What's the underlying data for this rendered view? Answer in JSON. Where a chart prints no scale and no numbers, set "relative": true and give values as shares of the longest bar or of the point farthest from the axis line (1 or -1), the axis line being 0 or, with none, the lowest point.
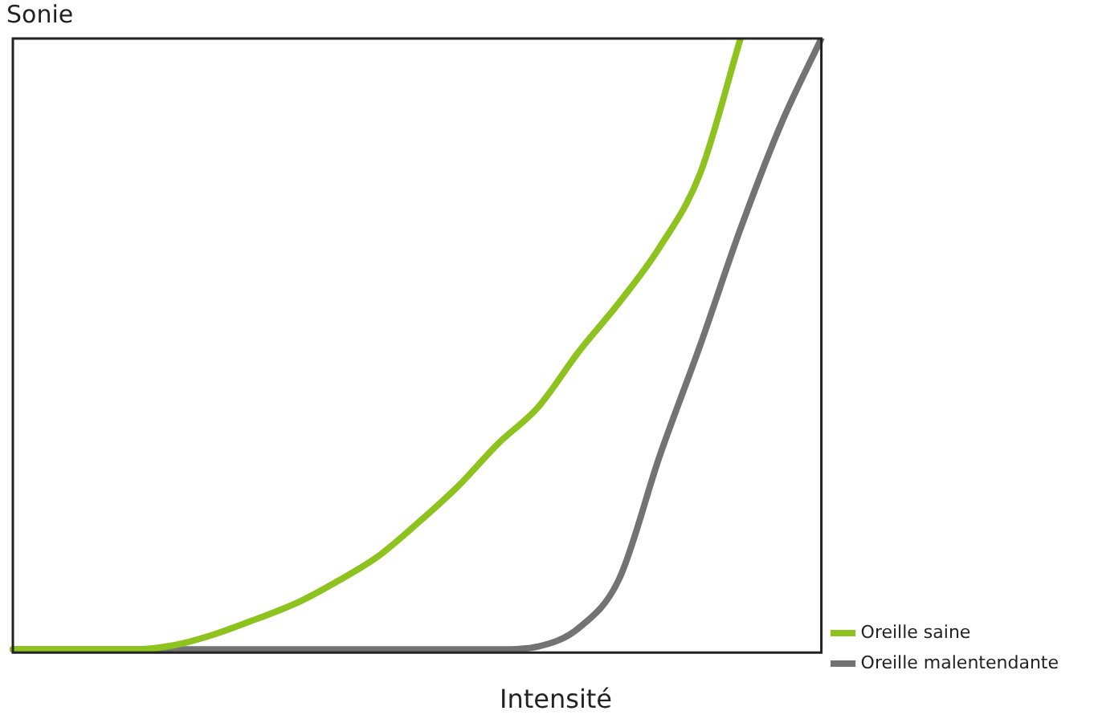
{
  "chart_data": {
    "type": "line",
    "xlabel": "Intensité",
    "ylabel": "Sonie",
    "relative": true,
    "legend": "bottom right",
    "grid": false,
    "marker": "none",
    "line_style": "solid",
    "categories": [
      null,
      null,
      null,
      null,
      null,
      null,
      null,
      null,
      null,
      null,
      null,
      null,
      null,
      null,
      null,
      null,
      null,
      null,
      null,
      null,
      null
    ],
    "series": [
      {
        "name": "Oreille saine",
        "color": "#8dc21f",
        "values": [
          0.005,
          0.005,
          0.005,
          0.005,
          0.012,
          0.03,
          0.054,
          0.08,
          0.115,
          0.155,
          0.21,
          0.27,
          0.34,
          0.4,
          0.49,
          0.57,
          0.66,
          0.78,
          1,
          null,
          null
        ]
      },
      {
        "name": "Oreille malentendante",
        "color": "#737373",
        "values": [
          0.005,
          0.005,
          0.005,
          0.005,
          0.005,
          0.005,
          0.005,
          0.005,
          0.005,
          0.005,
          0.005,
          0.005,
          0.005,
          0.01,
          0.04,
          0.12,
          0.32,
          0.5,
          0.69,
          0.86,
          1
        ]
      }
    ]
  }
}
